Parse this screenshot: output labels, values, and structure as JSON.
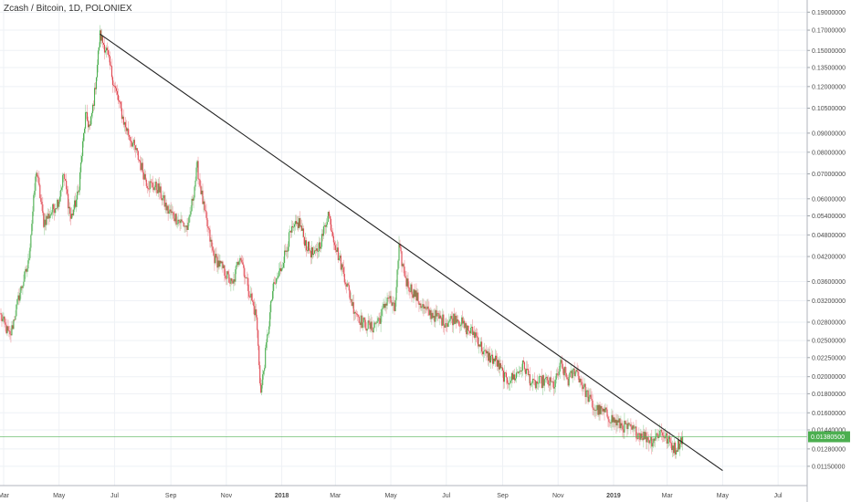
{
  "header": {
    "symbol_title": "Zcash / Bitcoin, 1D, POLONIEX"
  },
  "colors": {
    "up": "#4caf50",
    "down": "#e0454f",
    "trendline": "#222222",
    "current_price_line": "#4caf50",
    "grid": "#eef1f5",
    "axis_text": "#4a4a4a"
  },
  "chart_data": {
    "type": "candlestick",
    "title": "Zcash / Bitcoin, 1D, POLONIEX",
    "y_scale": "log",
    "ylim": [
      0.0108,
      0.198
    ],
    "x_range": [
      "2017-02-25",
      "2019-08-02"
    ],
    "y_ticks": [
      "0.19000000",
      "0.17000000",
      "0.15000000",
      "0.13500000",
      "0.12000000",
      "0.10500000",
      "0.09000000",
      "0.08000000",
      "0.07000000",
      "0.06000000",
      "0.05400000",
      "0.04800000",
      "0.04200000",
      "0.03600000",
      "0.03200000",
      "0.02800000",
      "0.02500000",
      "0.02250000",
      "0.02000000",
      "0.01800000",
      "0.01600000",
      "0.01440000",
      "0.01280000",
      "0.01150000"
    ],
    "x_ticks": [
      {
        "label": "Mar",
        "date": "2017-03-01",
        "bold": false
      },
      {
        "label": "May",
        "date": "2017-05-01",
        "bold": false
      },
      {
        "label": "Jul",
        "date": "2017-07-01",
        "bold": false
      },
      {
        "label": "Sep",
        "date": "2017-09-01",
        "bold": false
      },
      {
        "label": "Nov",
        "date": "2017-11-01",
        "bold": false
      },
      {
        "label": "2018",
        "date": "2018-01-01",
        "bold": true
      },
      {
        "label": "Mar",
        "date": "2018-03-01",
        "bold": false
      },
      {
        "label": "May",
        "date": "2018-05-01",
        "bold": false
      },
      {
        "label": "Jul",
        "date": "2018-07-01",
        "bold": false
      },
      {
        "label": "Sep",
        "date": "2018-09-01",
        "bold": false
      },
      {
        "label": "Nov",
        "date": "2018-11-01",
        "bold": false
      },
      {
        "label": "2019",
        "date": "2019-01-01",
        "bold": true
      },
      {
        "label": "Mar",
        "date": "2019-03-01",
        "bold": false
      },
      {
        "label": "May",
        "date": "2019-05-01",
        "bold": false
      },
      {
        "label": "Jul",
        "date": "2019-07-01",
        "bold": false
      }
    ],
    "price_path": [
      [
        "2017-02-26",
        0.029
      ],
      [
        "2017-03-08",
        0.0255
      ],
      [
        "2017-03-18",
        0.033
      ],
      [
        "2017-03-28",
        0.04
      ],
      [
        "2017-04-06",
        0.072
      ],
      [
        "2017-04-14",
        0.052
      ],
      [
        "2017-04-22",
        0.055
      ],
      [
        "2017-05-01",
        0.06
      ],
      [
        "2017-05-06",
        0.07
      ],
      [
        "2017-05-14",
        0.053
      ],
      [
        "2017-05-22",
        0.062
      ],
      [
        "2017-05-30",
        0.1
      ],
      [
        "2017-06-04",
        0.093
      ],
      [
        "2017-06-09",
        0.115
      ],
      [
        "2017-06-15",
        0.165
      ],
      [
        "2017-06-22",
        0.15
      ],
      [
        "2017-07-01",
        0.12
      ],
      [
        "2017-07-12",
        0.095
      ],
      [
        "2017-07-25",
        0.08
      ],
      [
        "2017-08-06",
        0.066
      ],
      [
        "2017-08-18",
        0.064
      ],
      [
        "2017-08-28",
        0.056
      ],
      [
        "2017-09-08",
        0.053
      ],
      [
        "2017-09-20",
        0.05
      ],
      [
        "2017-09-30",
        0.073
      ],
      [
        "2017-10-08",
        0.055
      ],
      [
        "2017-10-18",
        0.042
      ],
      [
        "2017-10-28",
        0.039
      ],
      [
        "2017-11-08",
        0.035
      ],
      [
        "2017-11-16",
        0.043
      ],
      [
        "2017-11-26",
        0.034
      ],
      [
        "2017-12-04",
        0.029
      ],
      [
        "2017-12-09",
        0.018
      ],
      [
        "2017-12-14",
        0.023
      ],
      [
        "2017-12-22",
        0.034
      ],
      [
        "2017-12-31",
        0.039
      ],
      [
        "2018-01-10",
        0.048
      ],
      [
        "2018-01-20",
        0.052
      ],
      [
        "2018-01-28",
        0.045
      ],
      [
        "2018-02-06",
        0.042
      ],
      [
        "2018-02-14",
        0.047
      ],
      [
        "2018-02-21",
        0.055
      ],
      [
        "2018-03-02",
        0.044
      ],
      [
        "2018-03-10",
        0.038
      ],
      [
        "2018-03-20",
        0.031
      ],
      [
        "2018-03-30",
        0.028
      ],
      [
        "2018-04-10",
        0.027
      ],
      [
        "2018-04-20",
        0.029
      ],
      [
        "2018-04-28",
        0.033
      ],
      [
        "2018-05-05",
        0.03
      ],
      [
        "2018-05-10",
        0.044
      ],
      [
        "2018-05-18",
        0.036
      ],
      [
        "2018-05-28",
        0.033
      ],
      [
        "2018-06-08",
        0.03
      ],
      [
        "2018-06-20",
        0.029
      ],
      [
        "2018-07-01",
        0.028
      ],
      [
        "2018-07-12",
        0.029
      ],
      [
        "2018-07-22",
        0.027
      ],
      [
        "2018-08-02",
        0.026
      ],
      [
        "2018-08-12",
        0.023
      ],
      [
        "2018-08-25",
        0.022
      ],
      [
        "2018-09-05",
        0.0195
      ],
      [
        "2018-09-14",
        0.02
      ],
      [
        "2018-09-24",
        0.0215
      ],
      [
        "2018-10-04",
        0.019
      ],
      [
        "2018-10-16",
        0.0195
      ],
      [
        "2018-10-28",
        0.019
      ],
      [
        "2018-11-04",
        0.0215
      ],
      [
        "2018-11-12",
        0.0195
      ],
      [
        "2018-11-20",
        0.021
      ],
      [
        "2018-11-30",
        0.0185
      ],
      [
        "2018-12-10",
        0.0165
      ],
      [
        "2018-12-22",
        0.016
      ],
      [
        "2019-01-05",
        0.015
      ],
      [
        "2019-01-18",
        0.0145
      ],
      [
        "2019-02-01",
        0.014
      ],
      [
        "2019-02-12",
        0.0135
      ],
      [
        "2019-02-22",
        0.0143
      ],
      [
        "2019-03-04",
        0.0133
      ],
      [
        "2019-03-10",
        0.0128
      ],
      [
        "2019-03-18",
        0.0138
      ]
    ],
    "trendline": {
      "start": [
        "2017-06-15",
        0.166
      ],
      "end": [
        "2019-05-01",
        0.0112
      ]
    },
    "current_price": {
      "value": 0.0138,
      "label": "0.01380500"
    }
  }
}
